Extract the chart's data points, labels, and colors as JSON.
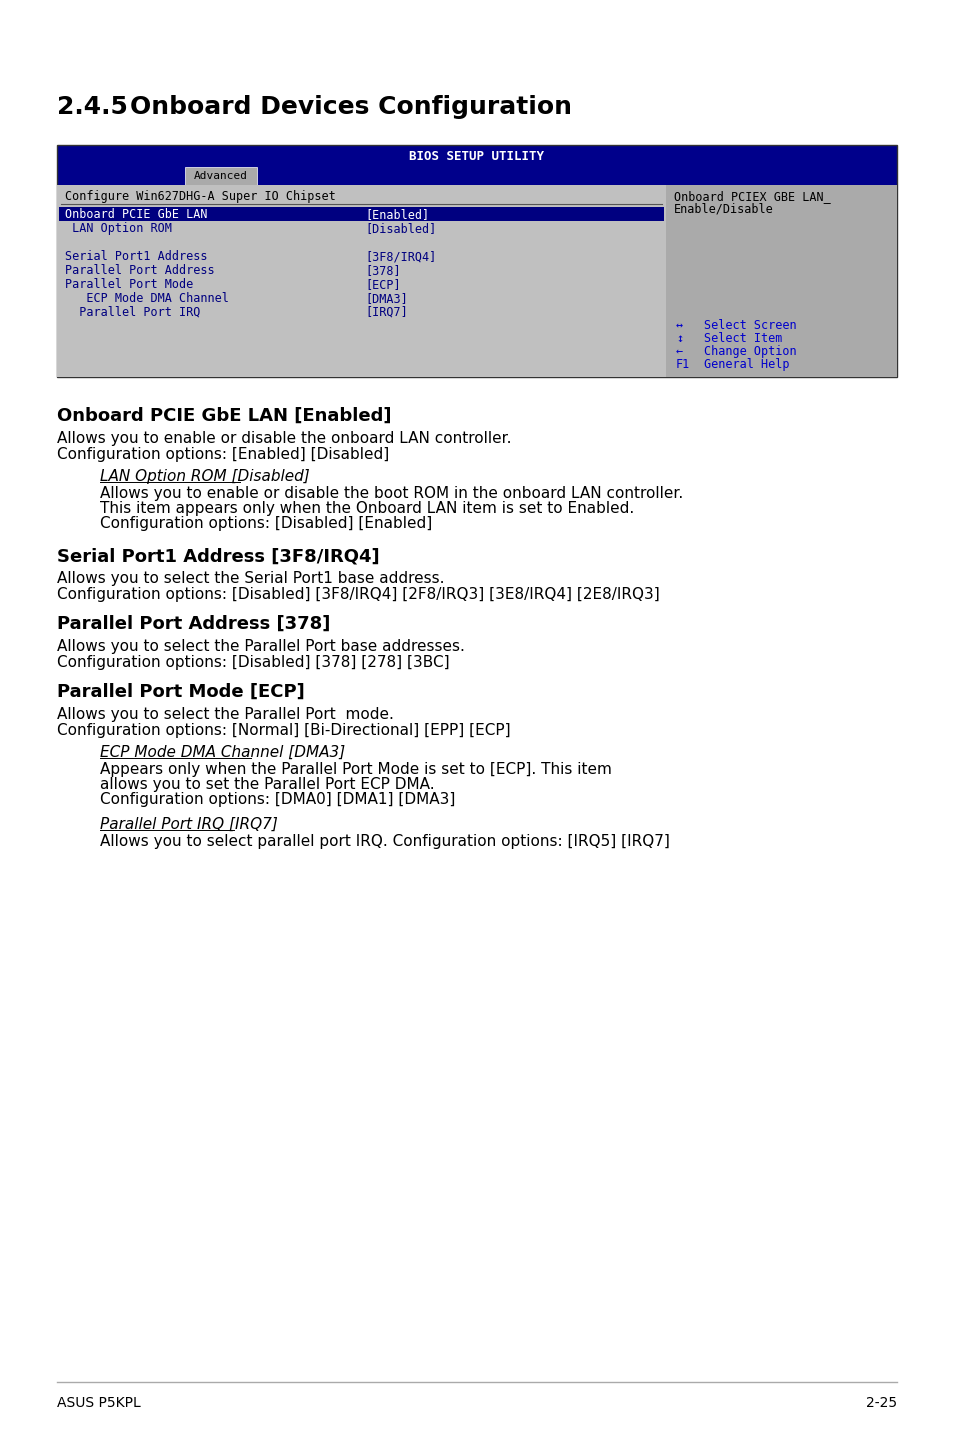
{
  "title_num": "2.4.5",
  "title_text": "Onboard Devices Configuration",
  "bios_title": "BIOS SETUP UTILITY",
  "tab_label": "Advanced",
  "left_panel_header": "Configure Win627DHG-A Super IO Chipset",
  "right_panel_header1": "Onboard PCIEX GBE LAN_",
  "right_panel_header2": "Enable/Disable",
  "bios_rows": [
    {
      "label": "Onboard PCIE GbE LAN",
      "value": "[Enabled]",
      "highlighted": true
    },
    {
      "label": " LAN Option ROM",
      "value": "[Disabled]",
      "highlighted": false
    },
    {
      "label": "",
      "value": "",
      "highlighted": false
    },
    {
      "label": "Serial Port1 Address",
      "value": "[3F8/IRQ4]",
      "highlighted": false
    },
    {
      "label": "Parallel Port Address",
      "value": "[378]",
      "highlighted": false
    },
    {
      "label": "Parallel Port Mode",
      "value": "[ECP]",
      "highlighted": false
    },
    {
      "label": "   ECP Mode DMA Channel",
      "value": "[DMA3]",
      "highlighted": false
    },
    {
      "label": "  Parallel Port IRQ",
      "value": "[IRQ7]",
      "highlighted": false
    }
  ],
  "nav_items": [
    {
      "sym": "↔",
      "desc": "Select Screen"
    },
    {
      "sym": "↕",
      "desc": "Select Item"
    },
    {
      "sym": "←",
      "desc": "Change Option"
    },
    {
      "sym": "F1",
      "desc": "General Help"
    }
  ],
  "sections": [
    {
      "heading": "Onboard PCIE GbE LAN [Enabled]",
      "paragraphs": [
        "Allows you to enable or disable the onboard LAN controller.",
        "Configuration options: [Enabled] [Disabled]"
      ],
      "sub_items": [
        {
          "label": "LAN Option ROM [Disabled]",
          "text_lines": [
            "Allows you to enable or disable the boot ROM in the onboard LAN controller.",
            "This item appears only when the Onboard LAN item is set to Enabled.",
            "Configuration options: [Disabled] [Enabled]"
          ]
        }
      ]
    },
    {
      "heading": "Serial Port1 Address [3F8/IRQ4]",
      "paragraphs": [
        "Allows you to select the Serial Port1 base address.",
        "Configuration options: [Disabled] [3F8/IRQ4] [2F8/IRQ3] [3E8/IRQ4] [2E8/IRQ3]"
      ],
      "sub_items": []
    },
    {
      "heading": "Parallel Port Address [378]",
      "paragraphs": [
        "Allows you to select the Parallel Port base addresses.",
        "Configuration options: [Disabled] [378] [278] [3BC]"
      ],
      "sub_items": []
    },
    {
      "heading": "Parallel Port Mode [ECP]",
      "paragraphs": [
        "Allows you to select the Parallel Port  mode.",
        "Configuration options: [Normal] [Bi-Directional] [EPP] [ECP]"
      ],
      "sub_items": [
        {
          "label": "ECP Mode DMA Channel [DMA3]",
          "text_lines": [
            "Appears only when the Parallel Port Mode is set to [ECP]. This item",
            "allows you to set the Parallel Port ECP DMA.",
            "Configuration options: [DMA0] [DMA1] [DMA3]"
          ]
        },
        {
          "label": "Parallel Port IRQ [IRQ7]",
          "text_lines": [
            "Allows you to select parallel port IRQ. Configuration options: [IRQ5] [IRQ7]"
          ]
        }
      ]
    }
  ],
  "footer_left": "ASUS P5KPL",
  "footer_right": "2-25",
  "bg_color": "#ffffff",
  "bios_bg_dark": "#00008B",
  "bios_highlight_bg": "#000080",
  "bios_highlight_fg": "#ffffff",
  "title_font_size": 18,
  "body_font_size": 11,
  "heading_font_size": 13,
  "bios_font_size": 8.5,
  "footer_font_size": 10
}
